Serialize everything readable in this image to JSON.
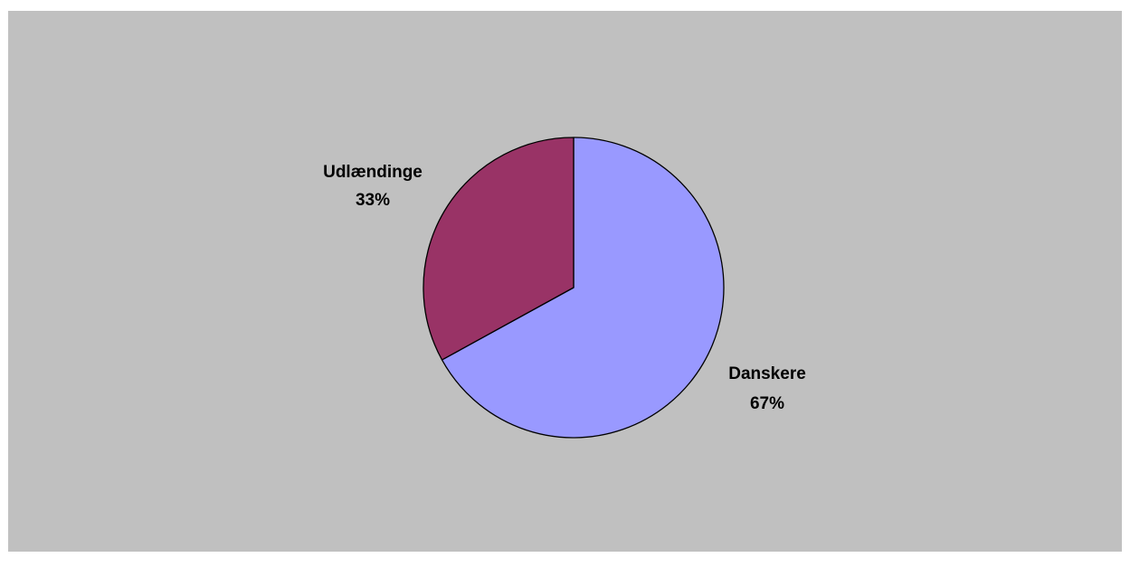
{
  "chart_data": {
    "type": "pie",
    "title": "",
    "categories": [
      "Danskere",
      "Udlændinge"
    ],
    "values": [
      67,
      33
    ],
    "unit": "%",
    "slice_labels": [
      {
        "name": "Danskere",
        "percent": "67%"
      },
      {
        "name": "Udlændinge",
        "percent": "33%"
      }
    ],
    "colors": {
      "Danskere": "#9999ff",
      "Udlændinge": "#993366",
      "plot_area": "#c0c0c0",
      "outline": "#000000"
    },
    "start_angle_deg": 0,
    "direction": "clockwise",
    "legend": "none",
    "grid": false
  }
}
